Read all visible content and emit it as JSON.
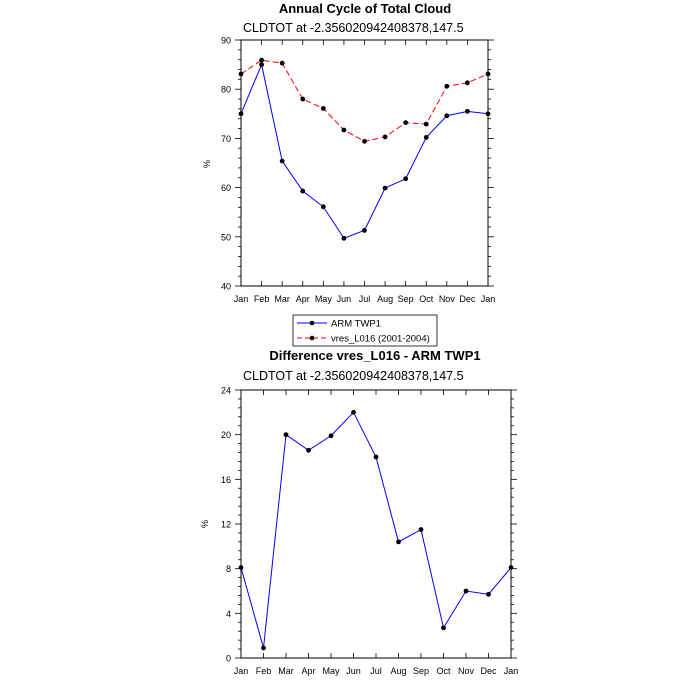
{
  "chart_data": [
    {
      "type": "line",
      "title": "Annual Cycle of Total Cloud",
      "subtitle": "CLDTOT at -2.356020942408378,147.5",
      "ylabel": "%",
      "xlabel": "",
      "categories": [
        "Jan",
        "Feb",
        "Mar",
        "Apr",
        "May",
        "Jun",
        "Jul",
        "Aug",
        "Sep",
        "Oct",
        "Nov",
        "Dec",
        "Jan"
      ],
      "ylim": [
        40,
        90
      ],
      "yticks": [
        40,
        50,
        60,
        70,
        80,
        90
      ],
      "series": [
        {
          "name": "ARM TWP1",
          "color": "#0000ff",
          "dash": "solid",
          "values": [
            75.0,
            85.0,
            65.4,
            59.3,
            56.1,
            49.7,
            51.3,
            59.9,
            61.8,
            70.2,
            74.6,
            75.5,
            75.0
          ]
        },
        {
          "name": "vres_L016 (2001-2004)",
          "color": "#ff0000",
          "dash": "dashed",
          "values": [
            83.1,
            85.9,
            85.3,
            78.0,
            76.1,
            71.7,
            69.4,
            70.3,
            73.2,
            72.9,
            80.6,
            81.3,
            83.1
          ]
        }
      ],
      "legend": {
        "placement": "bottom-center",
        "entries": [
          "ARM TWP1",
          "vres_L016 (2001-2004)"
        ]
      }
    },
    {
      "type": "line",
      "title": "Difference vres_L016 - ARM TWP1",
      "subtitle": "CLDTOT at -2.356020942408378,147.5",
      "ylabel": "%",
      "xlabel": "",
      "categories": [
        "Jan",
        "Feb",
        "Mar",
        "Apr",
        "May",
        "Jun",
        "Jul",
        "Aug",
        "Sep",
        "Oct",
        "Nov",
        "Dec",
        "Jan"
      ],
      "ylim": [
        0,
        24
      ],
      "yticks": [
        0,
        4,
        8,
        12,
        16,
        20,
        24
      ],
      "series": [
        {
          "name": "Difference",
          "color": "#0000ff",
          "dash": "solid",
          "values": [
            8.1,
            0.9,
            20.0,
            18.6,
            19.9,
            22.0,
            18.0,
            10.4,
            11.5,
            2.7,
            6.0,
            5.7,
            8.1
          ]
        }
      ]
    }
  ]
}
